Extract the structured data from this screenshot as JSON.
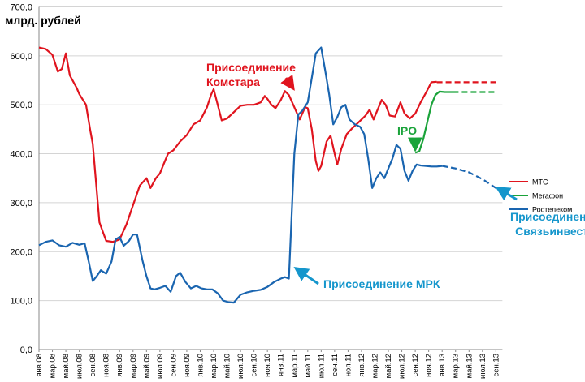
{
  "chart_data": {
    "type": "line",
    "ylabel": "млрд. рублей",
    "ylim": [
      0,
      700
    ],
    "yticks": [
      "0,0",
      "100,0",
      "200,0",
      "300,0",
      "400,0",
      "500,0",
      "600,0",
      "700,0"
    ],
    "categories": [
      "янв.08",
      "мар.08",
      "май.08",
      "июл.08",
      "сен.08",
      "ноя.08",
      "янв.09",
      "мар.09",
      "май.09",
      "июл.09",
      "сен.09",
      "ноя.09",
      "янв.10",
      "мар.10",
      "май.10",
      "июл.10",
      "сен.10",
      "ноя.10",
      "янв.11",
      "мар.11",
      "май.11",
      "июл.11",
      "сен.11",
      "ноя.11",
      "янв.12",
      "мар.12",
      "май.12",
      "июл.12",
      "сен.12",
      "ноя.12",
      "янв.13",
      "мар.13",
      "май.13",
      "июл.13",
      "сен.13"
    ],
    "series": [
      {
        "name": "МТС",
        "color": "#e0141e",
        "points": [
          [
            0,
            617
          ],
          [
            0.5,
            614
          ],
          [
            1,
            602
          ],
          [
            1.4,
            568
          ],
          [
            1.7,
            573
          ],
          [
            2,
            605
          ],
          [
            2.3,
            560
          ],
          [
            2.8,
            535
          ],
          [
            3,
            522
          ],
          [
            3.5,
            500
          ],
          [
            3.8,
            450
          ],
          [
            4,
            420
          ],
          [
            4.5,
            260
          ],
          [
            5,
            222
          ],
          [
            5.5,
            220
          ],
          [
            6,
            225
          ],
          [
            6.5,
            255
          ],
          [
            7,
            295
          ],
          [
            7.5,
            335
          ],
          [
            8,
            350
          ],
          [
            8.3,
            330
          ],
          [
            8.7,
            350
          ],
          [
            9,
            360
          ],
          [
            9.3,
            380
          ],
          [
            9.6,
            400
          ],
          [
            10,
            407
          ],
          [
            10.5,
            425
          ],
          [
            11,
            438
          ],
          [
            11.5,
            460
          ],
          [
            12,
            468
          ],
          [
            12.5,
            495
          ],
          [
            12.8,
            520
          ],
          [
            13,
            532
          ],
          [
            13.3,
            500
          ],
          [
            13.6,
            468
          ],
          [
            14,
            472
          ],
          [
            14.5,
            485
          ],
          [
            15,
            498
          ],
          [
            15.5,
            500
          ],
          [
            16,
            500
          ],
          [
            16.5,
            505
          ],
          [
            16.8,
            518
          ],
          [
            17,
            512
          ],
          [
            17.3,
            500
          ],
          [
            17.6,
            493
          ],
          [
            18,
            510
          ],
          [
            18.3,
            528
          ],
          [
            18.6,
            520
          ],
          [
            19,
            495
          ],
          [
            19.4,
            470
          ],
          [
            19.8,
            495
          ],
          [
            20,
            493
          ],
          [
            20.3,
            450
          ],
          [
            20.6,
            385
          ],
          [
            20.8,
            365
          ],
          [
            21,
            375
          ],
          [
            21.4,
            425
          ],
          [
            21.7,
            437
          ],
          [
            22,
            400
          ],
          [
            22.2,
            378
          ],
          [
            22.5,
            410
          ],
          [
            22.9,
            440
          ],
          [
            23.3,
            452
          ],
          [
            23.7,
            462
          ],
          [
            24,
            470
          ],
          [
            24.3,
            478
          ],
          [
            24.6,
            490
          ],
          [
            24.9,
            470
          ],
          [
            25.2,
            490
          ],
          [
            25.5,
            510
          ],
          [
            25.8,
            500
          ],
          [
            26.1,
            478
          ],
          [
            26.5,
            476
          ],
          [
            26.9,
            505
          ],
          [
            27.2,
            482
          ],
          [
            27.6,
            472
          ],
          [
            28,
            482
          ],
          [
            28.4,
            505
          ],
          [
            28.8,
            525
          ],
          [
            29.2,
            546
          ],
          [
            29.6,
            547
          ]
        ]
      },
      {
        "name": "МТС (прогноз)",
        "color": "#e0141e",
        "dashed": true,
        "points": [
          [
            29.6,
            546
          ],
          [
            34,
            546
          ]
        ]
      },
      {
        "name": "Мегафон",
        "color": "#1aa33a",
        "points": [
          [
            28,
            402
          ],
          [
            28.3,
            405
          ],
          [
            28.6,
            430
          ],
          [
            28.9,
            465
          ],
          [
            29.2,
            500
          ],
          [
            29.5,
            520
          ],
          [
            29.8,
            527
          ],
          [
            30.2,
            526
          ],
          [
            30.8,
            526
          ]
        ]
      },
      {
        "name": "Мегафон (прогноз)",
        "color": "#1aa33a",
        "dashed": true,
        "points": [
          [
            30.8,
            526
          ],
          [
            34,
            526
          ]
        ]
      },
      {
        "name": "Ростелеком",
        "color": "#1a65b0",
        "points": [
          [
            0,
            213
          ],
          [
            0.5,
            220
          ],
          [
            1,
            223
          ],
          [
            1.5,
            213
          ],
          [
            2,
            210
          ],
          [
            2.5,
            218
          ],
          [
            3,
            214
          ],
          [
            3.4,
            217
          ],
          [
            3.7,
            180
          ],
          [
            4,
            140
          ],
          [
            4.3,
            150
          ],
          [
            4.6,
            162
          ],
          [
            5,
            155
          ],
          [
            5.4,
            180
          ],
          [
            5.7,
            225
          ],
          [
            6,
            230
          ],
          [
            6.3,
            212
          ],
          [
            6.7,
            222
          ],
          [
            7,
            235
          ],
          [
            7.3,
            235
          ],
          [
            7.7,
            182
          ],
          [
            8,
            150
          ],
          [
            8.3,
            125
          ],
          [
            8.6,
            123
          ],
          [
            9,
            126
          ],
          [
            9.4,
            130
          ],
          [
            9.8,
            118
          ],
          [
            10.2,
            150
          ],
          [
            10.5,
            157
          ],
          [
            10.9,
            138
          ],
          [
            11.3,
            125
          ],
          [
            11.7,
            130
          ],
          [
            12.1,
            125
          ],
          [
            12.5,
            123
          ],
          [
            12.9,
            123
          ],
          [
            13.3,
            115
          ],
          [
            13.7,
            100
          ],
          [
            14.1,
            97
          ],
          [
            14.5,
            96
          ],
          [
            15,
            112
          ],
          [
            15.5,
            117
          ],
          [
            16,
            120
          ],
          [
            16.5,
            122
          ],
          [
            17,
            128
          ],
          [
            17.5,
            138
          ],
          [
            18,
            145
          ],
          [
            18.3,
            148
          ],
          [
            18.6,
            145
          ],
          [
            19,
            400
          ],
          [
            19.3,
            480
          ],
          [
            19.6,
            488
          ],
          [
            20,
            505
          ],
          [
            20.3,
            555
          ],
          [
            20.6,
            605
          ],
          [
            21,
            617
          ],
          [
            21.3,
            570
          ],
          [
            21.6,
            520
          ],
          [
            21.9,
            460
          ],
          [
            22.2,
            475
          ],
          [
            22.5,
            495
          ],
          [
            22.8,
            500
          ],
          [
            23.1,
            470
          ],
          [
            23.5,
            460
          ],
          [
            23.9,
            455
          ],
          [
            24.2,
            440
          ],
          [
            24.5,
            390
          ],
          [
            24.8,
            330
          ],
          [
            25.1,
            350
          ],
          [
            25.4,
            362
          ],
          [
            25.7,
            350
          ],
          [
            26,
            370
          ],
          [
            26.3,
            390
          ],
          [
            26.6,
            418
          ],
          [
            26.9,
            410
          ],
          [
            27.2,
            365
          ],
          [
            27.5,
            345
          ],
          [
            27.8,
            365
          ],
          [
            28.1,
            378
          ],
          [
            28.4,
            376
          ],
          [
            28.8,
            375
          ],
          [
            29.2,
            374
          ],
          [
            29.6,
            374
          ],
          [
            30,
            375
          ]
        ]
      },
      {
        "name": "Ростелеком (прогноз)",
        "color": "#1a65b0",
        "dashed": true,
        "points": [
          [
            30,
            375
          ],
          [
            31,
            370
          ],
          [
            32,
            362
          ],
          [
            33,
            348
          ],
          [
            34,
            330
          ]
        ]
      }
    ],
    "legend": [
      {
        "label": "МТС",
        "color": "#e0141e"
      },
      {
        "label": "Мегафон",
        "color": "#1aa33a"
      },
      {
        "label": "Ростелеком",
        "color": "#1a65b0"
      }
    ],
    "annotations": [
      {
        "lines": [
          "Присоединение",
          "Комстара"
        ],
        "color": "#e0141e",
        "target": [
          19,
          530
        ]
      },
      {
        "lines": [
          "IPO"
        ],
        "color": "#1aa33a",
        "target": [
          28,
          405
        ]
      },
      {
        "lines": [
          "Присоединение МРК"
        ],
        "color": "#1596cc",
        "target": [
          19,
          168
        ]
      },
      {
        "lines": [
          "Присоединение",
          "Связьинвеста"
        ],
        "color": "#1596cc",
        "target": [
          34,
          332
        ]
      }
    ]
  }
}
